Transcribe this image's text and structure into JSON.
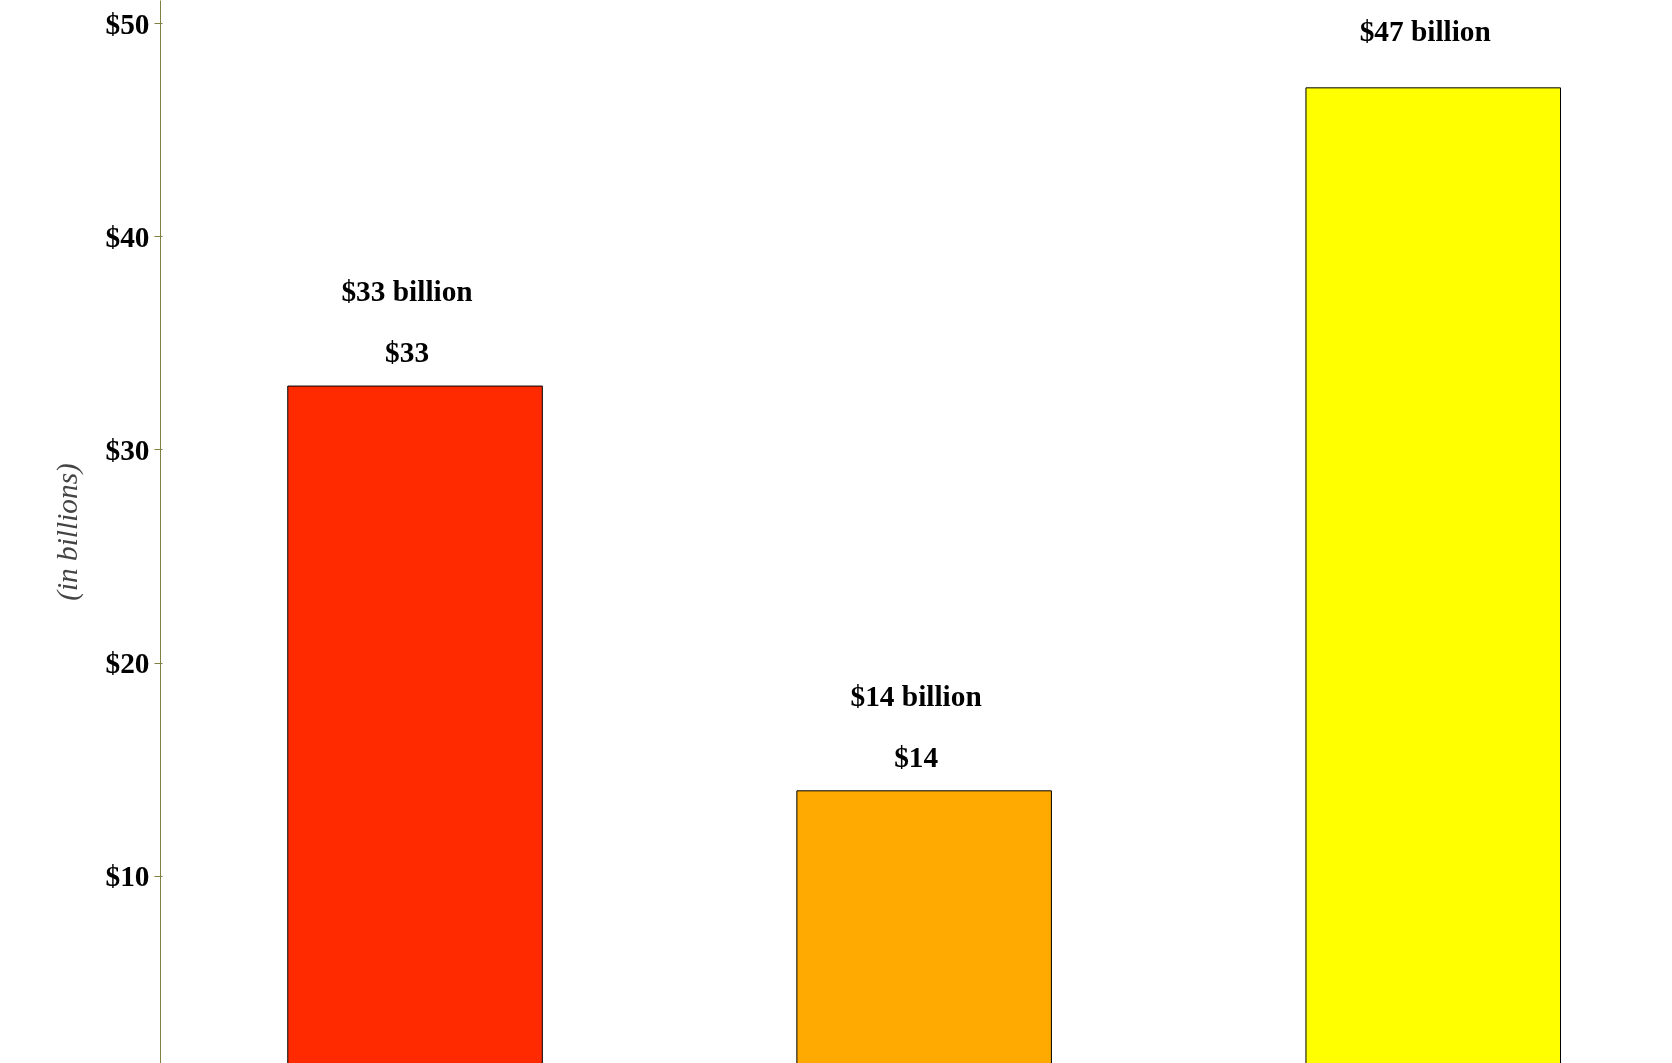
{
  "chart_data": {
    "type": "bar",
    "ylabel": "(in billions)",
    "categories": [
      null,
      null,
      null
    ],
    "values": [
      33,
      14,
      47
    ],
    "colors": [
      "#ff2a00",
      "#ffaa00",
      "#ffff00"
    ],
    "value_labels": [
      "$33",
      "$14",
      null
    ],
    "annotations": [
      "$33 billion",
      "$14 billion",
      "$47 billion"
    ],
    "ylim": [
      1.2,
      51.1
    ],
    "yticks": [
      {
        "value": 10,
        "label": "$10"
      },
      {
        "value": 20,
        "label": "$20"
      },
      {
        "value": 30,
        "label": "$30"
      },
      {
        "value": 40,
        "label": "$40"
      },
      {
        "value": 50,
        "label": "$50"
      }
    ],
    "grid": false
  }
}
